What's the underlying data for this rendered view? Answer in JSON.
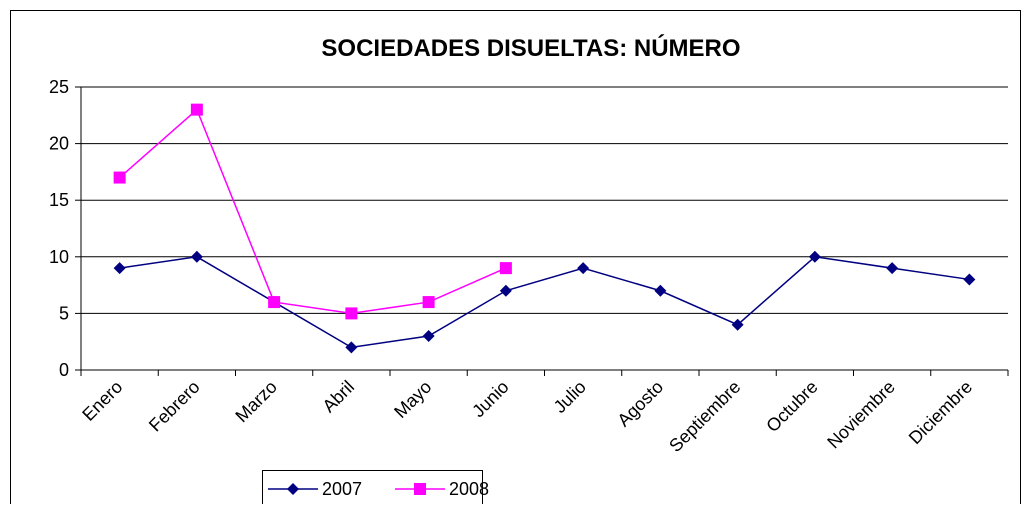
{
  "chart_data": {
    "type": "line",
    "title": "SOCIEDADES DISUELTAS: NÚMERO",
    "categories": [
      "Enero",
      "Febrero",
      "Marzo",
      "Abril",
      "Mayo",
      "Junio",
      "Julio",
      "Agosto",
      "Septiembre",
      "Octubre",
      "Noviembre",
      "Diciembre"
    ],
    "series": [
      {
        "name": "2007",
        "color": "#000080",
        "marker": "diamond",
        "values": [
          9,
          10,
          6,
          2,
          3,
          7,
          9,
          7,
          4,
          10,
          9,
          8
        ]
      },
      {
        "name": "2008",
        "color": "#ff00ff",
        "marker": "square",
        "values": [
          17,
          23,
          6,
          5,
          6,
          9,
          null,
          null,
          null,
          null,
          null,
          null
        ]
      }
    ],
    "ylim": [
      0,
      25
    ],
    "yticks": [
      0,
      5,
      10,
      15,
      20,
      25
    ],
    "grid": true,
    "legend": "bottom"
  }
}
